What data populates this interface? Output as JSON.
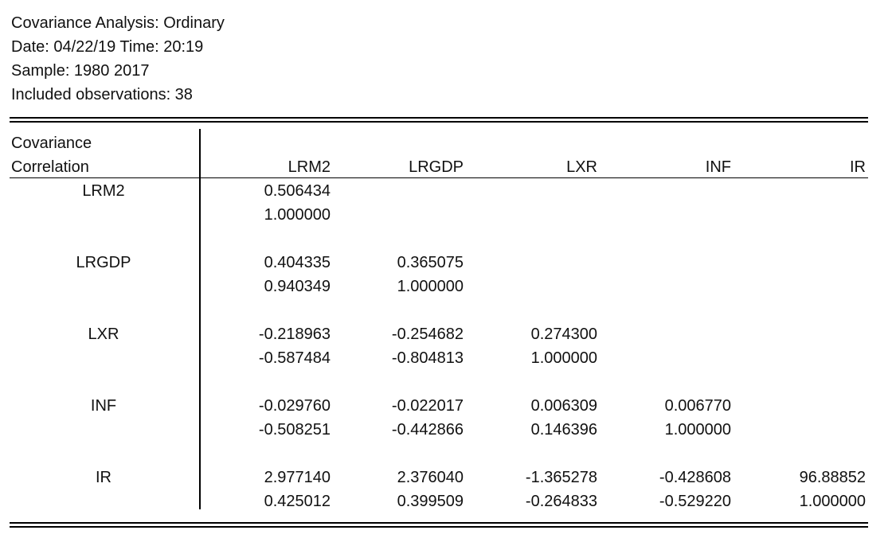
{
  "header": {
    "title": "Covariance Analysis: Ordinary",
    "date": "Date: 04/22/19   Time: 20:19",
    "sample": "Sample: 1980 2017",
    "observations": "Included observations: 38"
  },
  "table": {
    "stat_labels": [
      "Covariance",
      "Correlation"
    ],
    "columns": [
      "LRM2",
      "LRGDP",
      "LXR",
      "INF",
      "IR"
    ],
    "rows": [
      {
        "label": "LRM2",
        "covariance": [
          "0.506434"
        ],
        "correlation": [
          "1.000000"
        ]
      },
      {
        "label": "LRGDP",
        "covariance": [
          "0.404335",
          "0.365075"
        ],
        "correlation": [
          "0.940349",
          "1.000000"
        ]
      },
      {
        "label": "LXR",
        "covariance": [
          "-0.218963",
          "-0.254682",
          "0.274300"
        ],
        "correlation": [
          "-0.587484",
          "-0.804813",
          "1.000000"
        ]
      },
      {
        "label": "INF",
        "covariance": [
          "-0.029760",
          "-0.022017",
          "0.006309",
          "0.006770"
        ],
        "correlation": [
          "-0.508251",
          "-0.442866",
          "0.146396",
          "1.000000"
        ]
      },
      {
        "label": "IR",
        "covariance": [
          "2.977140",
          "2.376040",
          "-1.365278",
          "-0.428608",
          "96.88852"
        ],
        "correlation": [
          "0.425012",
          "0.399509",
          "-0.264833",
          "-0.529220",
          "1.000000"
        ]
      }
    ]
  }
}
